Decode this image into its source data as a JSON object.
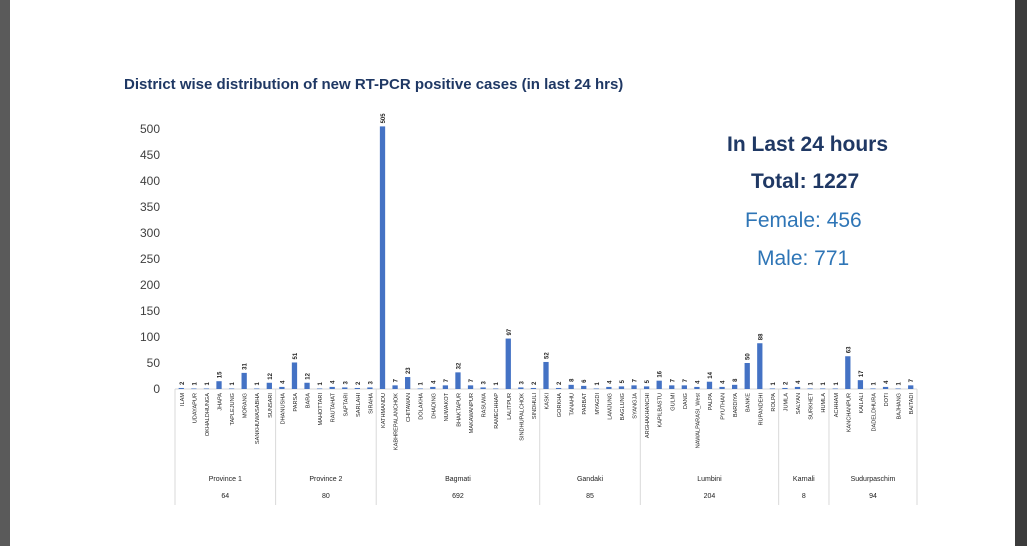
{
  "title": "District wise distribution of new RT-PCR positive cases (in last 24 hrs)",
  "summary": {
    "heading": "In Last 24 hours",
    "total": "Total:  1227",
    "female": "Female:  456",
    "male": "Male:  771"
  },
  "colors": {
    "bar": "#4472c4",
    "title": "#1f3864",
    "accent": "#2e75b6"
  },
  "chart_data": {
    "type": "bar",
    "title": "District wise distribution of new RT-PCR positive cases (in last 24 hrs)",
    "ylim": [
      0,
      500
    ],
    "yticks": [
      0,
      50,
      100,
      150,
      200,
      250,
      300,
      350,
      400,
      450,
      500
    ],
    "groups": [
      {
        "name": "Province 1",
        "total": "64",
        "categories": [
          "ILAM",
          "UDAYAPUR",
          "OKHALDHUNGA",
          "JHAPA",
          "TAPLEJUNG",
          "MORANG",
          "SANKHUWASABHA",
          "SUNSARI"
        ],
        "values": [
          2,
          1,
          1,
          15,
          1,
          31,
          1,
          12
        ]
      },
      {
        "name": "Province 2",
        "total": "80",
        "categories": [
          "DHANUSHA",
          "PARSA",
          "BARA",
          "MAHOTTARI",
          "RAUTAHAT",
          "SAPTARI",
          "SARLAHI",
          "SIRAHA"
        ],
        "values": [
          4,
          51,
          12,
          1,
          4,
          3,
          2,
          3
        ]
      },
      {
        "name": "Bagmati",
        "total": "692",
        "categories": [
          "KATHMANDU",
          "KABHREPALANCHOK",
          "CHITAWAN",
          "DOLAKHA",
          "DHADING",
          "NUWAKOT",
          "BHAKTAPUR",
          "MAKAWANPUR",
          "RASUWA",
          "RAMECHHAP",
          "LALITPUR",
          "SINDHUPALCHOK",
          "SINDHULI"
        ],
        "values": [
          505,
          7,
          23,
          1,
          4,
          7,
          32,
          7,
          3,
          1,
          97,
          3,
          2
        ]
      },
      {
        "name": "Gandaki",
        "total": "85",
        "categories": [
          "KASKI",
          "GORKHA",
          "TANAHU",
          "PARBAT",
          "MYAGDI",
          "LAMJUNG",
          "BAGLUNG",
          "SYANGJA"
        ],
        "values": [
          52,
          2,
          8,
          6,
          1,
          4,
          5,
          7
        ]
      },
      {
        "name": "Lumbini",
        "total": "204",
        "categories": [
          "ARGHAKHANCHI",
          "KAPILBASTU",
          "GULMI",
          "DANG",
          "NAWALPARASI_West",
          "PALPA",
          "PYUTHAN",
          "BARDIYA",
          "BANKE",
          "RUPANDEHI",
          "ROLPA"
        ],
        "values": [
          5,
          16,
          7,
          7,
          4,
          14,
          4,
          8,
          50,
          88,
          1
        ]
      },
      {
        "name": "Karnali",
        "total": "8",
        "categories": [
          "JUMLA",
          "SALYAN",
          "SURKHET",
          "HUMLA"
        ],
        "values": [
          2,
          4,
          1,
          1
        ]
      },
      {
        "name": "Sudurpaschim",
        "total": "94",
        "categories": [
          "ACHHAM",
          "KANCHANPUR",
          "KAILALI",
          "DADELDHURA",
          "DOTI",
          "BAJHANG",
          "BAITADI"
        ],
        "values": [
          1,
          63,
          17,
          1,
          4,
          1,
          7
        ]
      }
    ]
  }
}
